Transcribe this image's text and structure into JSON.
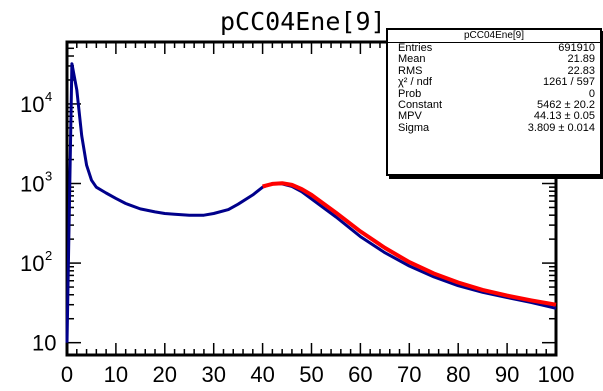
{
  "chart_data": {
    "type": "line",
    "title": "pCC04Ene[9]",
    "x": [
      0,
      1,
      2,
      3,
      4,
      5,
      6,
      8,
      10,
      12,
      15,
      18,
      20,
      22,
      25,
      28,
      30,
      33,
      35,
      38,
      40,
      42,
      44,
      46,
      48,
      50,
      55,
      60,
      65,
      70,
      75,
      80,
      85,
      90,
      95,
      100
    ],
    "series": [
      {
        "name": "",
        "color": "#00008b",
        "values": [
          10,
          32000,
          15000,
          4000,
          1700,
          1100,
          900,
          760,
          650,
          560,
          480,
          440,
          420,
          410,
          400,
          400,
          420,
          470,
          550,
          720,
          900,
          1000,
          990,
          920,
          790,
          640,
          380,
          215,
          135,
          92,
          67,
          52,
          43,
          37,
          32,
          27
        ]
      },
      {
        "name": "",
        "color": "#ff0000",
        "values": [
          null,
          null,
          null,
          null,
          null,
          null,
          null,
          null,
          null,
          null,
          null,
          null,
          null,
          null,
          null,
          null,
          null,
          null,
          null,
          null,
          920,
          990,
          1010,
          960,
          850,
          720,
          430,
          250,
          155,
          103,
          74,
          57,
          46,
          39,
          34,
          30
        ]
      }
    ],
    "xlim": [
      0,
      100
    ],
    "ylim": [
      7,
      60000
    ],
    "yscale": "log",
    "xticks": [
      "0",
      "10",
      "20",
      "30",
      "40",
      "50",
      "60",
      "70",
      "80",
      "90",
      "100"
    ],
    "yticks": [
      {
        "base": "10",
        "exp": "",
        "value": 10
      },
      {
        "base": "10",
        "exp": "2",
        "value": 100
      },
      {
        "base": "10",
        "exp": "3",
        "value": 1000
      },
      {
        "base": "10",
        "exp": "4",
        "value": 10000
      }
    ],
    "xlabel": "",
    "ylabel": "",
    "grid": false,
    "legend": "none"
  },
  "stats": {
    "title": "pCC04Ene[9]",
    "rows": [
      {
        "label": "Entries",
        "value": "691910"
      },
      {
        "label": "Mean",
        "value": "21.89"
      },
      {
        "label": "RMS",
        "value": "22.83"
      },
      {
        "label": "χ² / ndf",
        "value": "1261 / 597"
      },
      {
        "label": "Prob",
        "value": "0"
      },
      {
        "label": "Constant",
        "value": "5462 ± 20.2"
      },
      {
        "label": "MPV",
        "value": "44.13 ± 0.05"
      },
      {
        "label": "Sigma",
        "value": "3.809 ± 0.014"
      }
    ]
  }
}
